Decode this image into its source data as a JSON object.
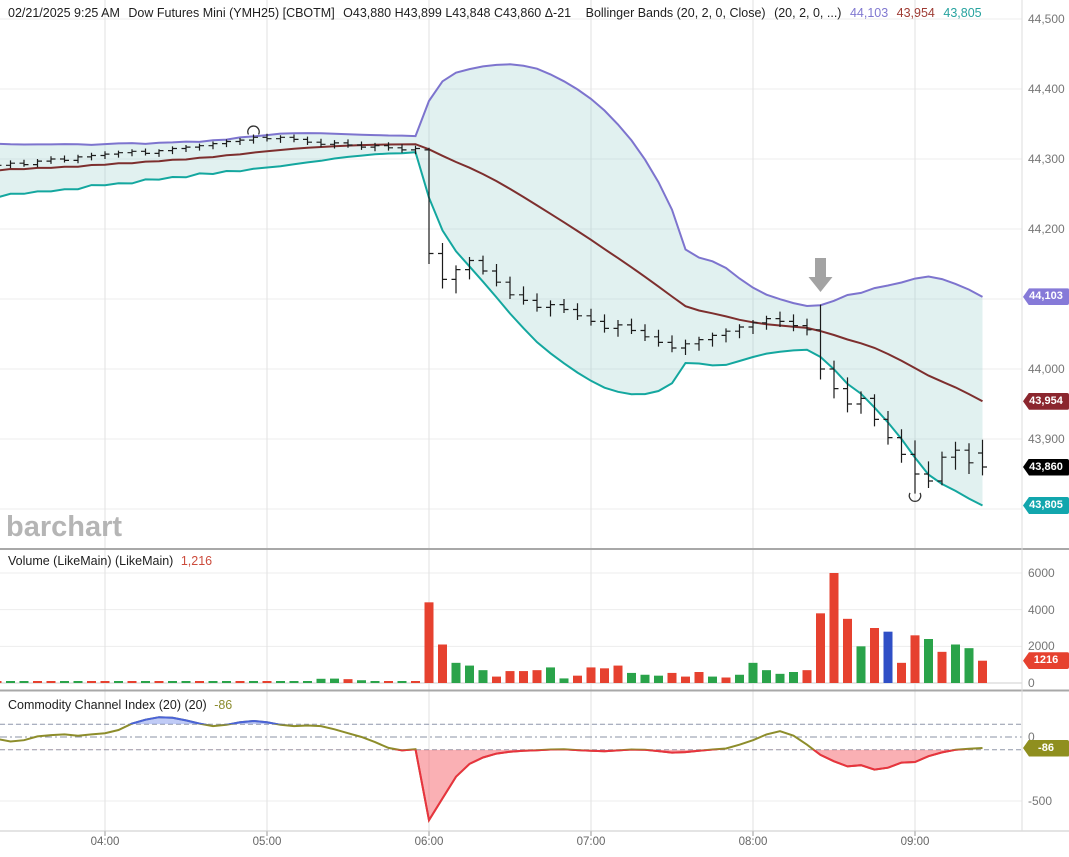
{
  "header": {
    "datetime": "02/21/2025 9:25 AM",
    "symbol": "Dow Futures Mini (YMH25) [CBOTM]",
    "ohlc": "O43,880 H43,899 L43,848 C43,860 Δ-21",
    "study": "Bollinger Bands (20, 2, 0, Close)",
    "study_params": "(20, 2, 0, ...)",
    "bb_upper_value": "44,103",
    "bb_middle_value": "43,954",
    "bb_lower_value": "43,805"
  },
  "watermark": "barchart",
  "panes": {
    "volume": {
      "title": "Volume (LikeMain)  (LikeMain)",
      "value": "1,216"
    },
    "cci": {
      "title": "Commodity Channel Index (20)  (20)",
      "value": "-86"
    }
  },
  "colors": {
    "bb_upper": "#7d74ce",
    "bb_middle": "#7d2f2e",
    "bb_lower": "#14a79f",
    "bb_fill": "rgba(148,205,202,0.28)",
    "price_bar": "#1c1c1c",
    "vol_up": "#2aa34a",
    "vol_down": "#e6412f",
    "vol_neutral": "#2f4fc6",
    "cci_line": "#8d8d2b",
    "cci_above_line": "#4a63d8",
    "cci_above_fill": "rgba(116,140,235,0.45)",
    "cci_below_line": "#e8333f",
    "cci_below_fill": "rgba(246,97,106,0.5)",
    "annotation_arrow": "#a3a3a3",
    "header_upper": "#8078d0",
    "header_middle": "#9e3b33",
    "header_lower": "#27a39f",
    "volume_value": "#cc4b3c",
    "cci_value": "#8b8b2d",
    "grid": "#ededed",
    "vgrid": "#e2e2e2"
  },
  "axes": {
    "price_ticks": [
      {
        "label": "44,500",
        "value": 44500
      },
      {
        "label": "44,400",
        "value": 44400
      },
      {
        "label": "44,300",
        "value": 44300
      },
      {
        "label": "44,200",
        "value": 44200
      },
      {
        "label": "44,000",
        "value": 44000
      },
      {
        "label": "43,900",
        "value": 43900
      }
    ],
    "volume_ticks": [
      {
        "label": "6000",
        "value": 6000
      },
      {
        "label": "4000",
        "value": 4000
      },
      {
        "label": "2000",
        "value": 2000
      },
      {
        "label": "0",
        "value": 0
      }
    ],
    "cci_ticks": [
      {
        "label": "0",
        "value": 0
      },
      {
        "label": "-500",
        "value": -500
      }
    ],
    "time_ticks": [
      "04:00",
      "05:00",
      "06:00",
      "07:00",
      "08:00",
      "09:00"
    ]
  },
  "badges": {
    "price": [
      {
        "label": "44,103",
        "value": 44103,
        "color": "#867ad8"
      },
      {
        "label": "43,954",
        "value": 43954,
        "color": "#8b262e"
      },
      {
        "label": "43,860",
        "value": 43860,
        "color": "#000000"
      },
      {
        "label": "43,805",
        "value": 43805,
        "color": "#12a6ad"
      }
    ],
    "volume": {
      "label": "1216",
      "value": 1216,
      "color": "#e6412f"
    },
    "cci": {
      "label": "-86",
      "value": -86,
      "color": "#8f8f1f"
    }
  },
  "chart_data": {
    "type": "ohlc",
    "title": "Dow Futures Mini (YMH25) [CBOTM] 5-minute",
    "interval_minutes": 5,
    "first_bar_time": "03:20",
    "price_axis_range": [
      43790,
      44515
    ],
    "bars": [
      [
        "03:20",
        44288,
        44295,
        44283,
        44291
      ],
      [
        "03:25",
        44291,
        44298,
        44287,
        44294
      ],
      [
        "03:30",
        44294,
        44299,
        44289,
        44292
      ],
      [
        "03:35",
        44292,
        44300,
        44288,
        44297
      ],
      [
        "03:40",
        44297,
        44304,
        44293,
        44300
      ],
      [
        "03:45",
        44300,
        44305,
        44295,
        44298
      ],
      [
        "03:50",
        44298,
        44306,
        44294,
        44303
      ],
      [
        "03:55",
        44303,
        44309,
        44298,
        44305
      ],
      [
        "04:00",
        44305,
        44311,
        44300,
        44307
      ],
      [
        "04:05",
        44307,
        44312,
        44302,
        44309
      ],
      [
        "04:10",
        44309,
        44314,
        44304,
        44311
      ],
      [
        "04:15",
        44311,
        44315,
        44305,
        44308
      ],
      [
        "04:20",
        44308,
        44314,
        44303,
        44312
      ],
      [
        "04:25",
        44312,
        44318,
        44307,
        44315
      ],
      [
        "04:30",
        44315,
        44320,
        44310,
        44317
      ],
      [
        "04:35",
        44317,
        44322,
        44312,
        44319
      ],
      [
        "04:40",
        44319,
        44325,
        44314,
        44322
      ],
      [
        "04:45",
        44322,
        44328,
        44317,
        44325
      ],
      [
        "04:50",
        44325,
        44330,
        44320,
        44327
      ],
      [
        "04:55",
        44327,
        44335,
        44322,
        44331
      ],
      [
        "05:00",
        44331,
        44336,
        44325,
        44329
      ],
      [
        "05:05",
        44329,
        44334,
        44323,
        44331
      ],
      [
        "05:10",
        44331,
        44335,
        44324,
        44328
      ],
      [
        "05:15",
        44328,
        44332,
        44320,
        44324
      ],
      [
        "05:20",
        44324,
        44329,
        44317,
        44321
      ],
      [
        "05:25",
        44321,
        44327,
        44315,
        44323
      ],
      [
        "05:30",
        44323,
        44328,
        44316,
        44320
      ],
      [
        "05:35",
        44320,
        44325,
        44313,
        44317
      ],
      [
        "05:40",
        44317,
        44323,
        44311,
        44319
      ],
      [
        "05:45",
        44319,
        44324,
        44312,
        44316
      ],
      [
        "05:50",
        44316,
        44321,
        44309,
        44313
      ],
      [
        "05:55",
        44313,
        44319,
        44307,
        44315
      ],
      [
        "06:00",
        44313,
        44316,
        44150,
        44165
      ],
      [
        "06:05",
        44165,
        44180,
        44115,
        44128
      ],
      [
        "06:10",
        44128,
        44148,
        44108,
        44142
      ],
      [
        "06:15",
        44142,
        44160,
        44128,
        44155
      ],
      [
        "06:20",
        44155,
        44162,
        44135,
        44140
      ],
      [
        "06:25",
        44140,
        44150,
        44118,
        44124
      ],
      [
        "06:30",
        44124,
        44132,
        44100,
        44106
      ],
      [
        "06:35",
        44106,
        44118,
        44092,
        44098
      ],
      [
        "06:40",
        44098,
        44108,
        44082,
        44088
      ],
      [
        "06:45",
        44088,
        44098,
        44075,
        44092
      ],
      [
        "06:50",
        44092,
        44100,
        44080,
        44085
      ],
      [
        "06:55",
        44085,
        44094,
        44070,
        44076
      ],
      [
        "07:00",
        44076,
        44086,
        44062,
        44068
      ],
      [
        "07:05",
        44068,
        44078,
        44052,
        44058
      ],
      [
        "07:10",
        44058,
        44070,
        44046,
        44063
      ],
      [
        "07:15",
        44063,
        44072,
        44050,
        44055
      ],
      [
        "07:20",
        44055,
        44064,
        44040,
        44046
      ],
      [
        "07:25",
        44046,
        44056,
        44032,
        44038
      ],
      [
        "07:30",
        44038,
        44048,
        44024,
        44030
      ],
      [
        "07:35",
        44030,
        44042,
        44020,
        44036
      ],
      [
        "07:40",
        44036,
        44046,
        44026,
        44042
      ],
      [
        "07:45",
        44042,
        44052,
        44032,
        44048
      ],
      [
        "07:50",
        44048,
        44058,
        44038,
        44054
      ],
      [
        "07:55",
        44054,
        44064,
        44044,
        44060
      ],
      [
        "08:00",
        44060,
        44070,
        44050,
        44066
      ],
      [
        "08:05",
        44066,
        44076,
        44056,
        44072
      ],
      [
        "08:10",
        44072,
        44082,
        44060,
        44068
      ],
      [
        "08:15",
        44068,
        44078,
        44054,
        44062
      ],
      [
        "08:20",
        44062,
        44072,
        44048,
        44056
      ],
      [
        "08:25",
        44056,
        44092,
        43985,
        44000
      ],
      [
        "08:30",
        44000,
        44012,
        43958,
        43972
      ],
      [
        "08:35",
        43972,
        43988,
        43938,
        43950
      ],
      [
        "08:40",
        43950,
        43968,
        43936,
        43958
      ],
      [
        "08:45",
        43958,
        43964,
        43918,
        43928
      ],
      [
        "08:50",
        43928,
        43940,
        43892,
        43902
      ],
      [
        "08:55",
        43902,
        43914,
        43866,
        43878
      ],
      [
        "09:00",
        43878,
        43898,
        43822,
        43850
      ],
      [
        "09:05",
        43850,
        43868,
        43830,
        43840
      ],
      [
        "09:10",
        43840,
        43882,
        43834,
        43874
      ],
      [
        "09:15",
        43874,
        43896,
        43856,
        43884
      ],
      [
        "09:20",
        43884,
        43894,
        43850,
        43866
      ],
      [
        "09:25",
        43880,
        43899,
        43848,
        43860
      ]
    ],
    "volume": [
      [
        60,
        "r"
      ],
      [
        45,
        "g"
      ],
      [
        70,
        "g"
      ],
      [
        55,
        "r"
      ],
      [
        80,
        "r"
      ],
      [
        50,
        "g"
      ],
      [
        65,
        "g"
      ],
      [
        45,
        "r"
      ],
      [
        90,
        "r"
      ],
      [
        60,
        "g"
      ],
      [
        75,
        "r"
      ],
      [
        55,
        "g"
      ],
      [
        65,
        "r"
      ],
      [
        80,
        "g"
      ],
      [
        50,
        "g"
      ],
      [
        70,
        "r"
      ],
      [
        85,
        "g"
      ],
      [
        95,
        "g"
      ],
      [
        75,
        "r"
      ],
      [
        110,
        "g"
      ],
      [
        90,
        "r"
      ],
      [
        80,
        "g"
      ],
      [
        95,
        "g"
      ],
      [
        105,
        "g"
      ],
      [
        230,
        "g"
      ],
      [
        240,
        "g"
      ],
      [
        210,
        "r"
      ],
      [
        150,
        "g"
      ],
      [
        100,
        "g"
      ],
      [
        80,
        "r"
      ],
      [
        70,
        "g"
      ],
      [
        60,
        "r"
      ],
      [
        4400,
        "r"
      ],
      [
        2100,
        "r"
      ],
      [
        1100,
        "g"
      ],
      [
        950,
        "g"
      ],
      [
        700,
        "g"
      ],
      [
        350,
        "r"
      ],
      [
        650,
        "r"
      ],
      [
        650,
        "r"
      ],
      [
        700,
        "r"
      ],
      [
        850,
        "g"
      ],
      [
        250,
        "g"
      ],
      [
        400,
        "r"
      ],
      [
        850,
        "r"
      ],
      [
        800,
        "r"
      ],
      [
        950,
        "r"
      ],
      [
        550,
        "g"
      ],
      [
        450,
        "g"
      ],
      [
        400,
        "g"
      ],
      [
        550,
        "r"
      ],
      [
        350,
        "r"
      ],
      [
        600,
        "r"
      ],
      [
        350,
        "g"
      ],
      [
        300,
        "r"
      ],
      [
        450,
        "g"
      ],
      [
        1100,
        "g"
      ],
      [
        700,
        "g"
      ],
      [
        500,
        "g"
      ],
      [
        600,
        "g"
      ],
      [
        700,
        "r"
      ],
      [
        3800,
        "r"
      ],
      [
        6000,
        "r"
      ],
      [
        3500,
        "r"
      ],
      [
        2000,
        "g"
      ],
      [
        3000,
        "r"
      ],
      [
        2800,
        "b"
      ],
      [
        1100,
        "r"
      ],
      [
        2600,
        "r"
      ],
      [
        2400,
        "g"
      ],
      [
        1700,
        "r"
      ],
      [
        2100,
        "g"
      ],
      [
        1900,
        "g"
      ],
      [
        1216,
        "r"
      ]
    ],
    "cci": {
      "period": 20,
      "thresholds": [
        100,
        -100
      ],
      "last": -86,
      "values": [
        -15,
        -35,
        -25,
        5,
        15,
        20,
        10,
        20,
        30,
        55,
        105,
        135,
        155,
        150,
        130,
        105,
        85,
        95,
        115,
        125,
        115,
        95,
        85,
        90,
        85,
        60,
        30,
        0,
        -40,
        -85,
        -105,
        -95,
        -650,
        -480,
        -310,
        -210,
        -160,
        -130,
        -115,
        -108,
        -103,
        -98,
        -95,
        -102,
        -108,
        -112,
        -105,
        -98,
        -100,
        -110,
        -122,
        -118,
        -108,
        -98,
        -90,
        -60,
        -25,
        20,
        45,
        10,
        -60,
        -140,
        -190,
        -230,
        -220,
        -255,
        -240,
        -200,
        -195,
        -150,
        -120,
        -100,
        -92,
        -86
      ]
    },
    "bollinger": {
      "period": 20,
      "mult": 2,
      "pre_closes": [
        44250,
        44295,
        44260,
        44300,
        44265,
        44305,
        44255,
        44298,
        44270,
        44308,
        44262,
        44300,
        44272,
        44310,
        44268,
        44305,
        44275,
        44300,
        44280
      ],
      "last_upper": 44103,
      "last_middle": 43954,
      "last_lower": 43805
    },
    "annotations": [
      {
        "type": "arc-over",
        "time": "04:55",
        "price": 44340
      },
      {
        "type": "arrow-down",
        "time": "08:25",
        "price": 44110
      },
      {
        "type": "arc-under",
        "time": "09:00",
        "price": 43818
      }
    ]
  }
}
